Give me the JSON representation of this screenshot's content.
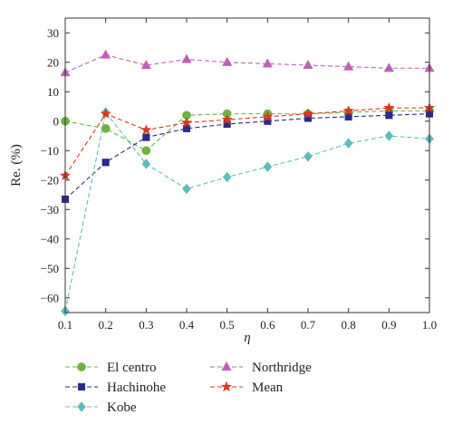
{
  "chart_data": {
    "type": "line",
    "xlabel": "η",
    "ylabel": "Re. (%)",
    "xlim": [
      0.1,
      1.0
    ],
    "ylim": [
      -65,
      35
    ],
    "xticks": [
      "0.1",
      "0.2",
      "0.3",
      "0.4",
      "0.5",
      "0.6",
      "0.7",
      "0.8",
      "0.9",
      "1.0"
    ],
    "yticks": [
      "30",
      "20",
      "10",
      "0",
      "−10",
      "−20",
      "−30",
      "−40",
      "−50",
      "−60"
    ],
    "grid": false,
    "legend_position": "bottom",
    "x": [
      0.1,
      0.2,
      0.3,
      0.4,
      0.5,
      0.6,
      0.7,
      0.8,
      0.9,
      1.0
    ],
    "series": [
      {
        "name": "El centro",
        "color": "#6cb33f",
        "marker": "circle",
        "values": [
          0,
          -2.5,
          -10,
          2,
          2.5,
          2.5,
          2.5,
          3,
          3.5,
          3.5
        ]
      },
      {
        "name": "Hachinohe",
        "color": "#2b2a8a",
        "marker": "square",
        "values": [
          -26.5,
          -14,
          -5.5,
          -2.5,
          -1,
          0,
          1,
          1.5,
          2,
          2.5
        ]
      },
      {
        "name": "Kobe",
        "color": "#5fbcbc",
        "marker": "diamond",
        "values": [
          -64.5,
          3,
          -14.5,
          -23,
          -19,
          -15.5,
          -12,
          -7.5,
          -5,
          -6
        ]
      },
      {
        "name": "Northridge",
        "color": "#c060b8",
        "marker": "triangle",
        "values": [
          16.5,
          22.5,
          19,
          21,
          20,
          19.5,
          19,
          18.5,
          18,
          18
        ]
      },
      {
        "name": "Mean",
        "color": "#d9381e",
        "marker": "star",
        "values": [
          -18.5,
          2.5,
          -3,
          -0.5,
          0.5,
          1.5,
          2.5,
          3.5,
          4.5,
          4.5
        ]
      }
    ]
  }
}
